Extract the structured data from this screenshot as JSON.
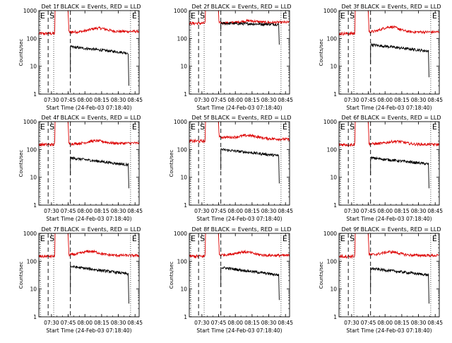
{
  "chart_data": [
    {
      "type": "line",
      "title": "Det 1f BLACK = Events, RED = LLD",
      "ylabel": "Counts/sec",
      "xlabel": "Start Time (24-Feb-03 07:18:40)",
      "x_ticks": [
        "07:30",
        "07:45",
        "08:00",
        "08:15",
        "08:30",
        "08:45"
      ],
      "y_ticks": [
        "1",
        "10",
        "100",
        "1000"
      ],
      "y_scale": "log",
      "ylim": [
        1,
        1000
      ],
      "markers": [
        {
          "label": "E",
          "time": "07:20"
        },
        {
          "label": "S",
          "time": "07:27"
        },
        {
          "label": "E",
          "time": "08:41"
        }
      ],
      "series": [
        {
          "name": "Events",
          "color": "#000000",
          "profile": {
            "start": "07:47",
            "end": "08:39",
            "start_value": 50,
            "end_value": 30,
            "drop_value": 2
          }
        },
        {
          "name": "LLD",
          "color": "#dd0000",
          "profile": {
            "base": 150,
            "peak_start": "07:34",
            "peak_end": "07:44",
            "late_value": 170,
            "bump_time": "08:12",
            "bump_value": 230,
            "tail_value": 180
          }
        }
      ]
    },
    {
      "type": "line",
      "title": "Det 2f BLACK = Events, RED = LLD",
      "ylabel": "",
      "xlabel": "Start Time (24-Feb-03 07:18:40)",
      "x_ticks": [
        "07:30",
        "07:45",
        "08:00",
        "08:15",
        "08:30",
        "08:45"
      ],
      "y_ticks": [
        "1",
        "10",
        "100",
        "1000"
      ],
      "y_scale": "log",
      "ylim": [
        1,
        1000
      ],
      "markers": [
        {
          "label": "E",
          "time": "07:20"
        },
        {
          "label": "S",
          "time": "07:27"
        },
        {
          "label": "E",
          "time": "08:41"
        }
      ],
      "series": [
        {
          "name": "Events",
          "color": "#000000",
          "profile": {
            "start": "07:47",
            "end": "08:39",
            "start_value": 350,
            "end_value": 320,
            "drop_value": 60
          }
        },
        {
          "name": "LLD",
          "color": "#dd0000",
          "profile": {
            "base": 350,
            "peak_start": "07:34",
            "peak_end": "07:44",
            "late_value": 360,
            "bump_time": "08:12",
            "bump_value": 420,
            "tail_value": 380
          }
        }
      ]
    },
    {
      "type": "line",
      "title": "Det 3f BLACK = Events, RED = LLD",
      "ylabel": "Counts/sec",
      "xlabel": "Start Time (24-Feb-03 07:18:40)",
      "x_ticks": [
        "07:30",
        "07:45",
        "08:00",
        "08:15",
        "08:30",
        "08:45"
      ],
      "y_ticks": [
        "1",
        "10",
        "100",
        "1000"
      ],
      "y_scale": "log",
      "ylim": [
        1,
        1000
      ],
      "markers": [
        {
          "label": "E",
          "time": "07:20"
        },
        {
          "label": "S",
          "time": "07:27"
        },
        {
          "label": "E",
          "time": "08:41"
        }
      ],
      "series": [
        {
          "name": "Events",
          "color": "#000000",
          "profile": {
            "start": "07:47",
            "end": "08:39",
            "start_value": 60,
            "end_value": 35,
            "drop_value": 4
          }
        },
        {
          "name": "LLD",
          "color": "#dd0000",
          "profile": {
            "base": 150,
            "peak_start": "07:34",
            "peak_end": "07:44",
            "late_value": 170,
            "bump_time": "08:05",
            "bump_value": 260,
            "tail_value": 170
          }
        }
      ]
    },
    {
      "type": "line",
      "title": "Det 4f BLACK = Events, RED = LLD",
      "ylabel": "Counts/sec",
      "xlabel": "Start Time (24-Feb-03 07:18:40)",
      "x_ticks": [
        "07:30",
        "07:45",
        "08:00",
        "08:15",
        "08:30",
        "08:45"
      ],
      "y_ticks": [
        "1",
        "10",
        "100",
        "1000"
      ],
      "y_scale": "log",
      "ylim": [
        1,
        1000
      ],
      "markers": [
        {
          "label": "E",
          "time": "07:20"
        },
        {
          "label": "S",
          "time": "07:27"
        },
        {
          "label": "E",
          "time": "08:41"
        }
      ],
      "series": [
        {
          "name": "Events",
          "color": "#000000",
          "profile": {
            "start": "07:47",
            "end": "08:39",
            "start_value": 50,
            "end_value": 28,
            "drop_value": 4
          }
        },
        {
          "name": "LLD",
          "color": "#dd0000",
          "profile": {
            "base": 150,
            "peak_start": "07:34",
            "peak_end": "07:44",
            "late_value": 160,
            "bump_time": "08:10",
            "bump_value": 200,
            "tail_value": 170
          }
        }
      ]
    },
    {
      "type": "line",
      "title": "Det 5f BLACK = Events, RED = LLD",
      "ylabel": "Counts/sec",
      "xlabel": "Start Time (24-Feb-03 07:18:40)",
      "x_ticks": [
        "07:30",
        "07:45",
        "08:00",
        "08:15",
        "08:30",
        "08:45"
      ],
      "y_ticks": [
        "1",
        "10",
        "100",
        "1000"
      ],
      "y_scale": "log",
      "ylim": [
        1,
        1000
      ],
      "markers": [
        {
          "label": "E",
          "time": "07:20"
        },
        {
          "label": "S",
          "time": "07:27"
        },
        {
          "label": "E",
          "time": "08:41"
        }
      ],
      "series": [
        {
          "name": "Events",
          "color": "#000000",
          "profile": {
            "start": "07:47",
            "end": "08:39",
            "start_value": 100,
            "end_value": 60,
            "drop_value": 6
          }
        },
        {
          "name": "LLD",
          "color": "#dd0000",
          "profile": {
            "base": 200,
            "peak_start": "07:34",
            "peak_end": "07:44",
            "late_value": 280,
            "bump_time": "08:12",
            "bump_value": 340,
            "tail_value": 230
          }
        }
      ]
    },
    {
      "type": "line",
      "title": "Det 6f BLACK = Events, RED = LLD",
      "ylabel": "",
      "xlabel": "Start Time (24-Feb-03 07:18:40)",
      "x_ticks": [
        "07:30",
        "07:45",
        "08:00",
        "08:15",
        "08:30",
        "08:45"
      ],
      "y_ticks": [
        "1",
        "10",
        "100",
        "1000"
      ],
      "y_scale": "log",
      "ylim": [
        1,
        1000
      ],
      "markers": [
        {
          "label": "E",
          "time": "07:20"
        },
        {
          "label": "S",
          "time": "07:27"
        },
        {
          "label": "E",
          "time": "08:41"
        }
      ],
      "series": [
        {
          "name": "Events",
          "color": "#000000",
          "profile": {
            "start": "07:47",
            "end": "08:39",
            "start_value": 50,
            "end_value": 30,
            "drop_value": 4
          }
        },
        {
          "name": "LLD",
          "color": "#dd0000",
          "profile": {
            "base": 150,
            "peak_start": "07:34",
            "peak_end": "07:44",
            "late_value": 160,
            "bump_time": "08:10",
            "bump_value": 200,
            "tail_value": 150
          }
        }
      ]
    },
    {
      "type": "line",
      "title": "Det 7f BLACK = Events, RED = LLD",
      "ylabel": "Counts/sec",
      "xlabel": "Start Time (24-Feb-03 07:18:40)",
      "x_ticks": [
        "07:30",
        "07:45",
        "08:00",
        "08:15",
        "08:30",
        "08:45"
      ],
      "y_ticks": [
        "1",
        "10",
        "100",
        "1000"
      ],
      "y_scale": "log",
      "ylim": [
        1,
        1000
      ],
      "markers": [
        {
          "label": "E",
          "time": "07:20"
        },
        {
          "label": "S",
          "time": "07:27"
        },
        {
          "label": "E",
          "time": "08:41"
        }
      ],
      "series": [
        {
          "name": "Events",
          "color": "#000000",
          "profile": {
            "start": "07:47",
            "end": "08:39",
            "start_value": 65,
            "end_value": 35,
            "drop_value": 3
          }
        },
        {
          "name": "LLD",
          "color": "#dd0000",
          "profile": {
            "base": 150,
            "peak_start": "07:34",
            "peak_end": "07:44",
            "late_value": 170,
            "bump_time": "08:05",
            "bump_value": 230,
            "tail_value": 160
          }
        }
      ]
    },
    {
      "type": "line",
      "title": "Det 8f BLACK = Events, RED = LLD",
      "ylabel": "Counts/sec",
      "xlabel": "Start Time (24-Feb-03 07:18:40)",
      "x_ticks": [
        "07:30",
        "07:45",
        "08:00",
        "08:15",
        "08:30",
        "08:45"
      ],
      "y_ticks": [
        "1",
        "10",
        "100",
        "1000"
      ],
      "y_scale": "log",
      "ylim": [
        1,
        1000
      ],
      "markers": [
        {
          "label": "E",
          "time": "07:20"
        },
        {
          "label": "S",
          "time": "07:27"
        },
        {
          "label": "E",
          "time": "08:41"
        }
      ],
      "series": [
        {
          "name": "Events",
          "color": "#000000",
          "profile": {
            "start": "07:47",
            "end": "08:39",
            "start_value": 60,
            "end_value": 32,
            "drop_value": 4
          }
        },
        {
          "name": "LLD",
          "color": "#dd0000",
          "profile": {
            "base": 150,
            "peak_start": "07:34",
            "peak_end": "07:44",
            "late_value": 170,
            "bump_time": "08:08",
            "bump_value": 220,
            "tail_value": 160
          }
        }
      ]
    },
    {
      "type": "line",
      "title": "Det 9f BLACK = Events, RED = LLD",
      "ylabel": "Counts/sec",
      "xlabel": "Start Time (24-Feb-03 07:18:40)",
      "x_ticks": [
        "07:30",
        "07:45",
        "08:00",
        "08:15",
        "08:30",
        "08:45"
      ],
      "y_ticks": [
        "1",
        "10",
        "100",
        "1000"
      ],
      "y_scale": "log",
      "ylim": [
        1,
        1000
      ],
      "markers": [
        {
          "label": "E",
          "time": "07:20"
        },
        {
          "label": "S",
          "time": "07:27"
        },
        {
          "label": "E",
          "time": "08:41"
        }
      ],
      "series": [
        {
          "name": "Events",
          "color": "#000000",
          "profile": {
            "start": "07:47",
            "end": "08:39",
            "start_value": 55,
            "end_value": 32,
            "drop_value": 3
          }
        },
        {
          "name": "LLD",
          "color": "#dd0000",
          "profile": {
            "base": 150,
            "peak_start": "07:34",
            "peak_end": "07:44",
            "late_value": 170,
            "bump_time": "08:05",
            "bump_value": 220,
            "tail_value": 160
          }
        }
      ]
    }
  ]
}
